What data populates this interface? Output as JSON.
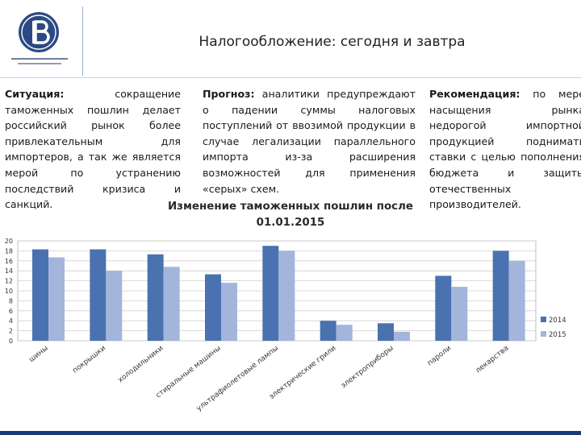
{
  "header": {
    "title": "Налогообложение: сегодня и завтра"
  },
  "situation": {
    "label": "Ситуация:",
    "text": " сокращение таможенных пошлин делает российский рынок более привлекательным для импортеров, а так же является мерой по устранению последствий кризиса и санкций."
  },
  "forecast": {
    "label": "Прогноз:",
    "text": " аналитики предупреждают о падении суммы налоговых поступлений от ввозимой продукции в случае легализации параллельного импорта из-за расширения возможностей для применения «серых» схем."
  },
  "recommendation": {
    "label": "Рекомендация:",
    "text": " по мере насыщения рынка недорогой импортной продукцией поднимать ставки с целью пополнения бюджета и защиты отечественных производителей."
  },
  "colors": {
    "series_2014": "#4a72b0",
    "series_2015": "#a4b5db",
    "accent": "#163a7a"
  },
  "chart_data": {
    "type": "bar",
    "title": "Изменение таможенных пошлин после 01.01.2015",
    "categories": [
      "шины",
      "покрышки",
      "холодильники",
      "стиральные машины",
      "ультрафиолетовые лампы",
      "электрические грили",
      "электроприборы",
      "пароли",
      "лекарства"
    ],
    "series": [
      {
        "name": "2014",
        "values": [
          18.3,
          18.3,
          17.3,
          13.3,
          19.0,
          4.0,
          3.5,
          13.0,
          18.0
        ]
      },
      {
        "name": "2015",
        "values": [
          16.7,
          14.0,
          14.8,
          11.6,
          18.0,
          3.2,
          1.8,
          10.8,
          16.0
        ]
      }
    ],
    "ylim": [
      0,
      20
    ],
    "yticks": [
      0,
      2,
      4,
      6,
      8,
      10,
      12,
      14,
      16,
      18,
      20
    ],
    "grid": true,
    "legend": "right"
  }
}
